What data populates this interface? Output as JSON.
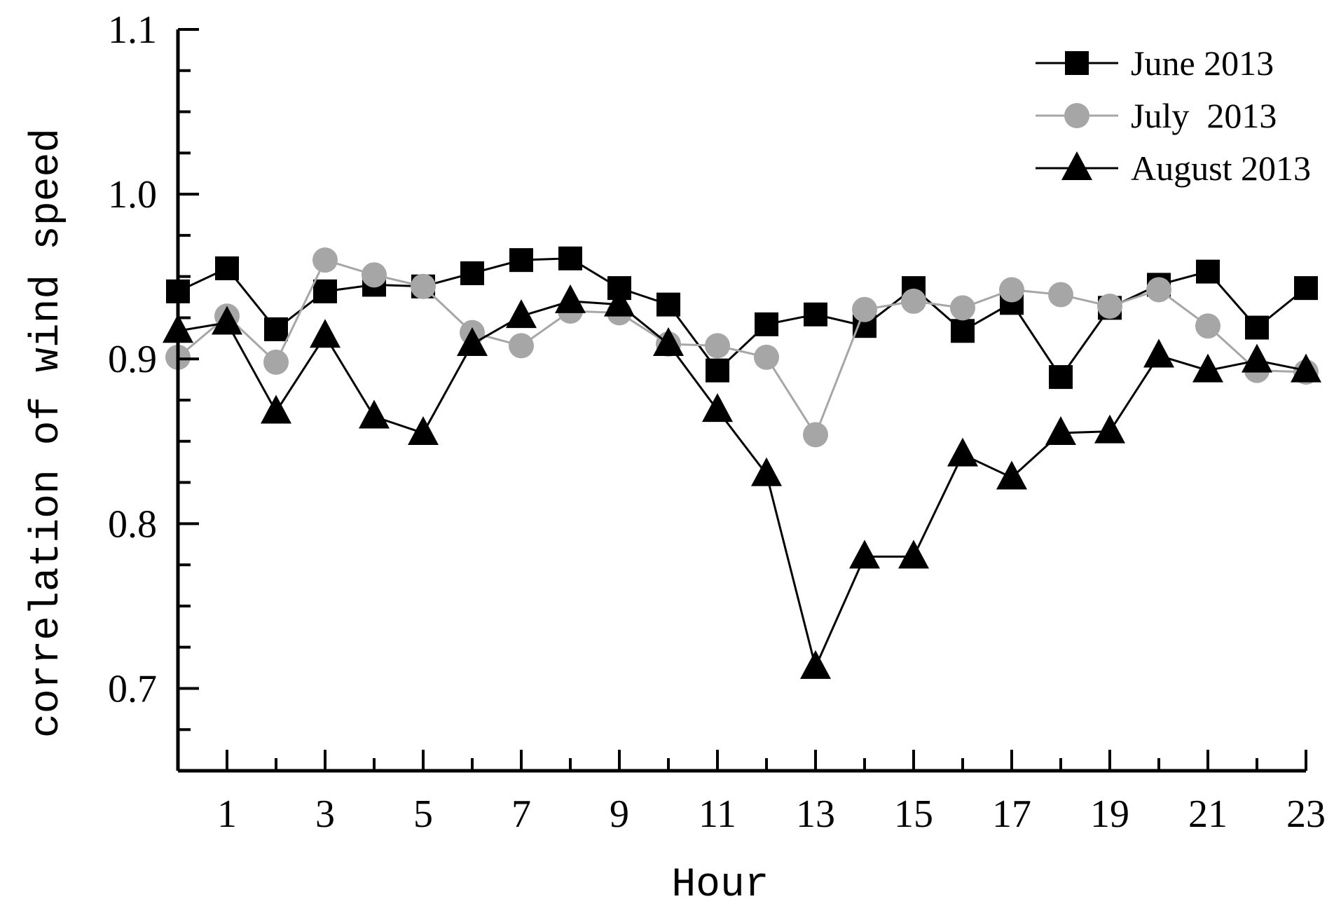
{
  "chart_data": {
    "type": "line",
    "title": "",
    "xlabel": "Hour",
    "ylabel": "correlation of wind speed",
    "xlim": [
      0,
      23
    ],
    "ylim": [
      0.65,
      1.1
    ],
    "yticks": [
      0.7,
      0.8,
      0.9,
      1.0,
      1.1
    ],
    "ytick_labels": [
      "0.7",
      "0.8",
      "0.9",
      "1.0",
      "1.1"
    ],
    "xticks": [
      1,
      3,
      5,
      7,
      9,
      11,
      13,
      15,
      17,
      19,
      21,
      23
    ],
    "xtick_labels": [
      "1",
      "3",
      "5",
      "7",
      "9",
      "11",
      "13",
      "15",
      "17",
      "19",
      "21",
      "23"
    ],
    "x": [
      0,
      1,
      2,
      3,
      4,
      5,
      6,
      7,
      8,
      9,
      10,
      11,
      12,
      13,
      14,
      15,
      16,
      17,
      18,
      19,
      20,
      21,
      22,
      23
    ],
    "legend_position": "top-right",
    "series": [
      {
        "name": "June 2013",
        "marker": "square",
        "color": "#000000",
        "values": [
          0.941,
          0.955,
          0.918,
          0.941,
          0.945,
          0.944,
          0.952,
          0.96,
          0.961,
          0.943,
          0.933,
          0.893,
          0.921,
          0.927,
          0.92,
          0.943,
          0.917,
          0.934,
          0.889,
          0.931,
          0.945,
          0.953,
          0.919,
          0.943
        ]
      },
      {
        "name": "July  2013",
        "marker": "circle",
        "color": "#a6a6a6",
        "values": [
          0.901,
          0.926,
          0.898,
          0.96,
          0.951,
          0.944,
          0.916,
          0.908,
          0.929,
          0.928,
          0.909,
          0.908,
          0.901,
          0.854,
          0.93,
          0.935,
          0.931,
          0.942,
          0.939,
          0.932,
          0.942,
          0.92,
          0.893,
          0.892
        ]
      },
      {
        "name": "August 2013",
        "marker": "triangle",
        "color": "#000000",
        "values": [
          0.917,
          0.922,
          0.868,
          0.914,
          0.865,
          0.855,
          0.909,
          0.926,
          0.935,
          0.933,
          0.909,
          0.869,
          0.83,
          0.713,
          0.78,
          0.78,
          0.842,
          0.828,
          0.855,
          0.856,
          0.902,
          0.893,
          0.899,
          0.893
        ]
      }
    ]
  }
}
